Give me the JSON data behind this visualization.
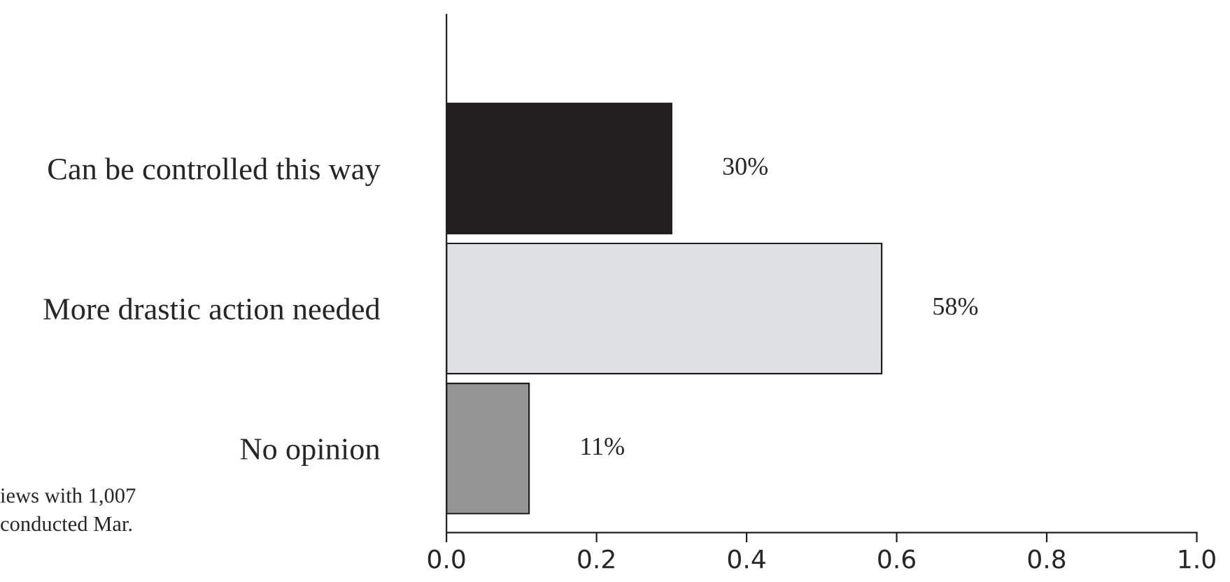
{
  "chart_data": {
    "type": "bar",
    "orientation": "horizontal",
    "categories": [
      "Can be controlled this way",
      "More drastic action needed",
      "No opinion"
    ],
    "values": [
      0.3,
      0.58,
      0.11
    ],
    "colors": [
      "#231f20",
      "#e0e1e2",
      "#949494"
    ],
    "value_labels": [
      "30%",
      "58%",
      "11%"
    ],
    "xlim": [
      0,
      1.0
    ],
    "xticks": [
      {
        "value": 0,
        "label": "0.0"
      },
      {
        "value": 0.2,
        "label": "0.2"
      },
      {
        "value": 0.4,
        "label": "0.4"
      },
      {
        "value": 0.6,
        "label": "0.6"
      },
      {
        "value": 0.8,
        "label": "0.8"
      },
      {
        "value": 1.0,
        "label": "1.0"
      }
    ],
    "grid": false,
    "legend": false,
    "annotations": [
      "iews with 1,007\nconducted Mar."
    ]
  }
}
